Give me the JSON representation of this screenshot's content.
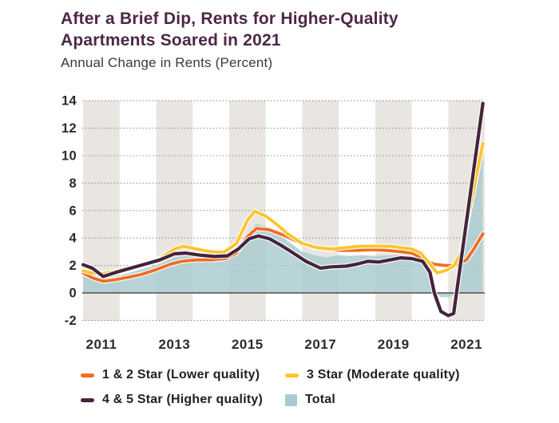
{
  "header": {
    "title_line1": "After a Brief Dip, Rents for Higher-Quality",
    "title_line2": "Apartments Soared in 2021",
    "subtitle": "Annual Change in Rents (Percent)"
  },
  "colors": {
    "title": "#4d2747",
    "subtitle_text": "#3c383c",
    "stripe": "#e9e6e1",
    "gridline": "#8c8c8c",
    "zero_line": "#4f4c4d",
    "tick_label": "#2d2a2b",
    "legend_text": "#231f20",
    "background": "#ffffff"
  },
  "chart_data": {
    "type": "line",
    "title": "After a Brief Dip, Rents for Higher-Quality Apartments Soared in 2021",
    "ylabel": "Annual Change in Rents (Percent)",
    "xlabel": "",
    "ylim": [
      -2,
      14
    ],
    "xlim": [
      2010.475,
      2021.5
    ],
    "yticks": [
      -2,
      0,
      2,
      4,
      6,
      8,
      10,
      12,
      14
    ],
    "xticks": [
      2011,
      2013,
      2015,
      2017,
      2019,
      2021
    ],
    "grid": "horizontal-dotted",
    "stripes_at_xticks": true,
    "legend_position": "bottom",
    "series": [
      {
        "name": "1 & 2 Star (Lower quality)",
        "type": "line",
        "color": "#f26c21",
        "width": 3.8,
        "points": [
          [
            2010.5,
            1.45
          ],
          [
            2010.75,
            1.1
          ],
          [
            2011.05,
            0.85
          ],
          [
            2011.35,
            0.95
          ],
          [
            2011.75,
            1.15
          ],
          [
            2012.1,
            1.35
          ],
          [
            2012.5,
            1.7
          ],
          [
            2012.9,
            2.1
          ],
          [
            2013.2,
            2.3
          ],
          [
            2013.6,
            2.4
          ],
          [
            2014.0,
            2.4
          ],
          [
            2014.4,
            2.5
          ],
          [
            2014.7,
            2.9
          ],
          [
            2015.0,
            4.1
          ],
          [
            2015.25,
            4.7
          ],
          [
            2015.6,
            4.6
          ],
          [
            2016.0,
            4.2
          ],
          [
            2016.4,
            3.7
          ],
          [
            2016.8,
            3.35
          ],
          [
            2017.2,
            3.15
          ],
          [
            2017.6,
            3.1
          ],
          [
            2018.0,
            3.1
          ],
          [
            2018.4,
            3.15
          ],
          [
            2018.8,
            3.1
          ],
          [
            2019.2,
            3.0
          ],
          [
            2019.5,
            2.9
          ],
          [
            2019.8,
            2.5
          ],
          [
            2020.1,
            2.1
          ],
          [
            2020.4,
            2.0
          ],
          [
            2020.7,
            2.0
          ],
          [
            2021.0,
            2.4
          ],
          [
            2021.2,
            3.2
          ],
          [
            2021.45,
            4.3
          ]
        ]
      },
      {
        "name": "3 Star (Moderate quality)",
        "type": "line",
        "color": "#fdc42c",
        "width": 3.8,
        "points": [
          [
            2010.5,
            1.6
          ],
          [
            2010.75,
            1.45
          ],
          [
            2011.05,
            1.4
          ],
          [
            2011.4,
            1.6
          ],
          [
            2011.8,
            1.85
          ],
          [
            2012.2,
            2.1
          ],
          [
            2012.6,
            2.5
          ],
          [
            2013.0,
            3.2
          ],
          [
            2013.25,
            3.4
          ],
          [
            2013.6,
            3.2
          ],
          [
            2014.0,
            3.0
          ],
          [
            2014.35,
            2.95
          ],
          [
            2014.7,
            3.6
          ],
          [
            2015.0,
            5.3
          ],
          [
            2015.2,
            5.95
          ],
          [
            2015.5,
            5.6
          ],
          [
            2015.8,
            5.0
          ],
          [
            2016.1,
            4.3
          ],
          [
            2016.5,
            3.6
          ],
          [
            2016.9,
            3.3
          ],
          [
            2017.3,
            3.2
          ],
          [
            2017.7,
            3.3
          ],
          [
            2018.1,
            3.4
          ],
          [
            2018.5,
            3.4
          ],
          [
            2018.9,
            3.4
          ],
          [
            2019.2,
            3.3
          ],
          [
            2019.5,
            3.2
          ],
          [
            2019.75,
            2.9
          ],
          [
            2020.0,
            2.1
          ],
          [
            2020.2,
            1.45
          ],
          [
            2020.45,
            1.65
          ],
          [
            2020.65,
            1.95
          ],
          [
            2020.85,
            2.9
          ],
          [
            2021.45,
            10.9
          ]
        ]
      },
      {
        "name": "4 & 5 Star (Higher quality)",
        "type": "line",
        "color": "#45243c",
        "width": 4.2,
        "points": [
          [
            2010.5,
            2.05
          ],
          [
            2010.75,
            1.8
          ],
          [
            2011.05,
            1.2
          ],
          [
            2011.4,
            1.5
          ],
          [
            2011.8,
            1.8
          ],
          [
            2012.2,
            2.1
          ],
          [
            2012.6,
            2.4
          ],
          [
            2013.0,
            2.85
          ],
          [
            2013.3,
            2.9
          ],
          [
            2013.7,
            2.75
          ],
          [
            2014.1,
            2.65
          ],
          [
            2014.45,
            2.7
          ],
          [
            2014.75,
            3.2
          ],
          [
            2015.05,
            3.95
          ],
          [
            2015.3,
            4.15
          ],
          [
            2015.6,
            3.95
          ],
          [
            2015.9,
            3.5
          ],
          [
            2016.2,
            3.0
          ],
          [
            2016.6,
            2.3
          ],
          [
            2017.0,
            1.8
          ],
          [
            2017.3,
            1.9
          ],
          [
            2017.7,
            1.95
          ],
          [
            2018.0,
            2.1
          ],
          [
            2018.3,
            2.3
          ],
          [
            2018.6,
            2.25
          ],
          [
            2018.9,
            2.4
          ],
          [
            2019.2,
            2.55
          ],
          [
            2019.5,
            2.5
          ],
          [
            2019.8,
            2.3
          ],
          [
            2020.0,
            1.5
          ],
          [
            2020.12,
            0.0
          ],
          [
            2020.3,
            -1.35
          ],
          [
            2020.5,
            -1.65
          ],
          [
            2020.65,
            -1.5
          ],
          [
            2021.45,
            13.8
          ]
        ]
      },
      {
        "name": "Total",
        "type": "area",
        "color": "#a9cbd0",
        "opacity": 0.82,
        "points": [
          [
            2010.5,
            1.5
          ],
          [
            2010.75,
            1.2
          ],
          [
            2011.05,
            0.95
          ],
          [
            2011.4,
            1.2
          ],
          [
            2011.8,
            1.5
          ],
          [
            2012.2,
            1.8
          ],
          [
            2012.6,
            2.1
          ],
          [
            2013.0,
            2.6
          ],
          [
            2013.3,
            2.7
          ],
          [
            2013.7,
            2.6
          ],
          [
            2014.1,
            2.6
          ],
          [
            2014.45,
            2.7
          ],
          [
            2014.75,
            3.2
          ],
          [
            2015.05,
            4.5
          ],
          [
            2015.25,
            5.05
          ],
          [
            2015.55,
            4.8
          ],
          [
            2015.85,
            4.3
          ],
          [
            2016.15,
            3.7
          ],
          [
            2016.5,
            3.0
          ],
          [
            2016.9,
            2.7
          ],
          [
            2017.2,
            2.6
          ],
          [
            2017.5,
            2.75
          ],
          [
            2017.8,
            2.7
          ],
          [
            2018.1,
            2.75
          ],
          [
            2018.5,
            2.7
          ],
          [
            2018.9,
            2.75
          ],
          [
            2019.2,
            2.75
          ],
          [
            2019.5,
            2.6
          ],
          [
            2019.8,
            2.2
          ],
          [
            2020.0,
            1.2
          ],
          [
            2020.15,
            0.0
          ],
          [
            2020.3,
            -0.3
          ],
          [
            2020.55,
            -0.3
          ],
          [
            2020.7,
            0.0
          ],
          [
            2020.9,
            2.6
          ],
          [
            2021.1,
            5.3
          ],
          [
            2021.45,
            10.0
          ]
        ]
      }
    ]
  },
  "legend": {
    "rows": [
      [
        "1 & 2 Star (Lower quality)",
        "3 Star (Moderate quality)"
      ],
      [
        "4 & 5 Star (Higher quality)",
        "Total"
      ]
    ]
  }
}
